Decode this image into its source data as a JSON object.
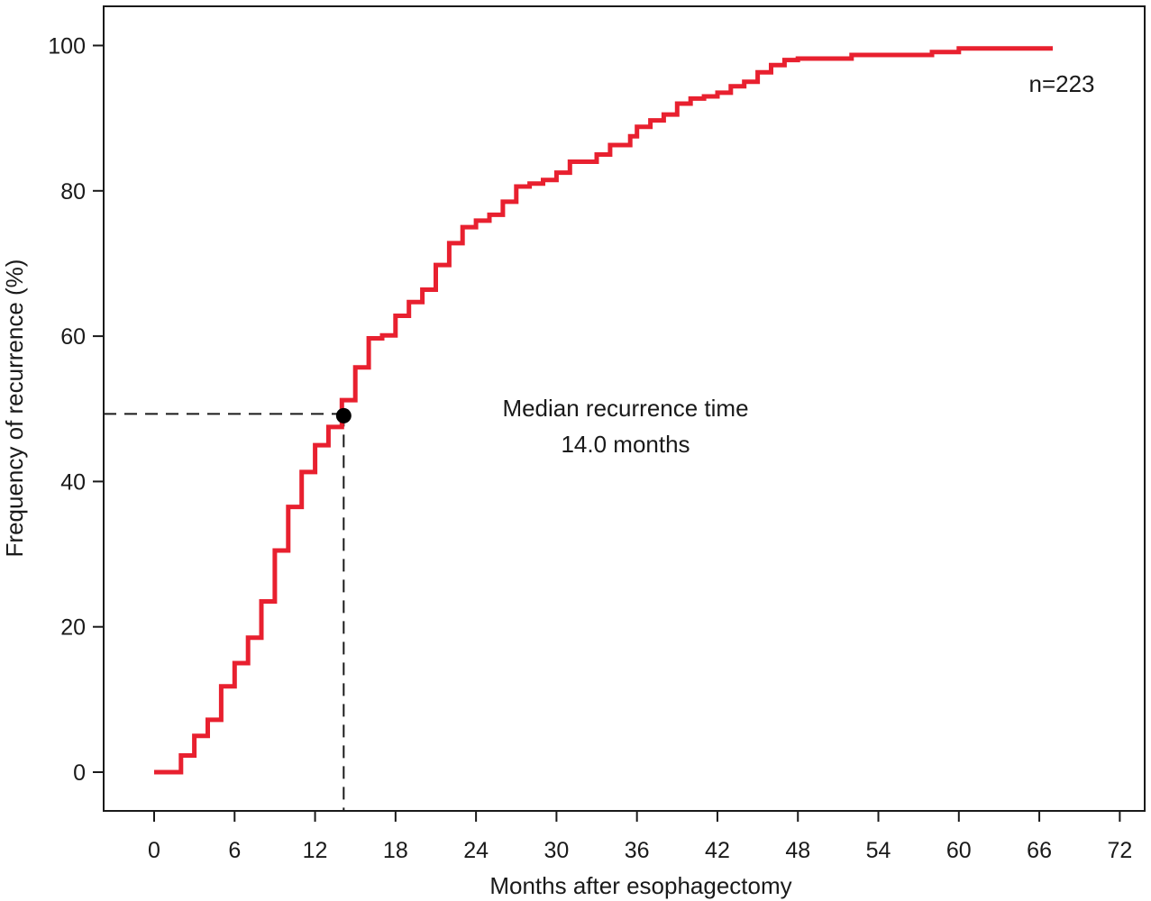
{
  "chart_data": {
    "type": "line",
    "step": true,
    "xlabel": "Months after esophagectomy",
    "ylabel": "Frequency of  recurrence (%)",
    "xlim": [
      0,
      72
    ],
    "ylim": [
      0,
      100
    ],
    "x_ticks": [
      0,
      6,
      12,
      18,
      24,
      30,
      36,
      42,
      48,
      54,
      60,
      66,
      72
    ],
    "y_ticks": [
      0,
      20,
      40,
      60,
      80,
      100
    ],
    "grid": false,
    "series": [
      {
        "color": "#e8202f",
        "points": [
          [
            0,
            0
          ],
          [
            2,
            0
          ],
          [
            2,
            2.3
          ],
          [
            3,
            2.3
          ],
          [
            3,
            5
          ],
          [
            4,
            5
          ],
          [
            4,
            7.2
          ],
          [
            5,
            7.2
          ],
          [
            5,
            11.8
          ],
          [
            6,
            11.8
          ],
          [
            6,
            15
          ],
          [
            7,
            15
          ],
          [
            7,
            18.5
          ],
          [
            8,
            18.5
          ],
          [
            8,
            23.5
          ],
          [
            9,
            23.5
          ],
          [
            9,
            30.5
          ],
          [
            10,
            30.5
          ],
          [
            10,
            36.5
          ],
          [
            11,
            36.5
          ],
          [
            11,
            41.3
          ],
          [
            12,
            41.3
          ],
          [
            12,
            45
          ],
          [
            13,
            45
          ],
          [
            13,
            47.5
          ],
          [
            14,
            47.5
          ],
          [
            14,
            51.2
          ],
          [
            15,
            51.2
          ],
          [
            15,
            55.7
          ],
          [
            16,
            55.7
          ],
          [
            16,
            59.7
          ],
          [
            17,
            59.7
          ],
          [
            17,
            60.1
          ],
          [
            18,
            60.1
          ],
          [
            18,
            62.8
          ],
          [
            19,
            62.8
          ],
          [
            19,
            64.7
          ],
          [
            20,
            64.7
          ],
          [
            20,
            66.4
          ],
          [
            21,
            66.4
          ],
          [
            21,
            69.8
          ],
          [
            22,
            69.8
          ],
          [
            22,
            72.8
          ],
          [
            23,
            72.8
          ],
          [
            23,
            75
          ],
          [
            24,
            75
          ],
          [
            24,
            75.9
          ],
          [
            25,
            75.9
          ],
          [
            25,
            76.7
          ],
          [
            26,
            76.7
          ],
          [
            26,
            78.5
          ],
          [
            27,
            78.5
          ],
          [
            27,
            80.6
          ],
          [
            28,
            80.6
          ],
          [
            28,
            81
          ],
          [
            29,
            81
          ],
          [
            29,
            81.5
          ],
          [
            30,
            81.5
          ],
          [
            30,
            82.5
          ],
          [
            31,
            82.5
          ],
          [
            31,
            84
          ],
          [
            33,
            84
          ],
          [
            33,
            85
          ],
          [
            34,
            85
          ],
          [
            34,
            86.3
          ],
          [
            35.5,
            86.3
          ],
          [
            35.5,
            87.5
          ],
          [
            36,
            87.5
          ],
          [
            36,
            88.8
          ],
          [
            37,
            88.8
          ],
          [
            37,
            89.7
          ],
          [
            38,
            89.7
          ],
          [
            38,
            90.5
          ],
          [
            39,
            90.5
          ],
          [
            39,
            92
          ],
          [
            40,
            92
          ],
          [
            40,
            92.7
          ],
          [
            41,
            92.7
          ],
          [
            41,
            93
          ],
          [
            42,
            93
          ],
          [
            42,
            93.5
          ],
          [
            43,
            93.5
          ],
          [
            43,
            94.4
          ],
          [
            44,
            94.4
          ],
          [
            44,
            95
          ],
          [
            45,
            95
          ],
          [
            45,
            96.3
          ],
          [
            46,
            96.3
          ],
          [
            46,
            97.3
          ],
          [
            47,
            97.3
          ],
          [
            47,
            98
          ],
          [
            48,
            98
          ],
          [
            48,
            98.2
          ],
          [
            52,
            98.2
          ],
          [
            52,
            98.7
          ],
          [
            58,
            98.7
          ],
          [
            58,
            99.1
          ],
          [
            60,
            99.1
          ],
          [
            60,
            99.6
          ],
          [
            67,
            99.6
          ]
        ]
      }
    ],
    "median": {
      "x": 14.0,
      "y": 49.3
    },
    "annotations": {
      "median_line1": "Median recurrence time",
      "median_line2": "14.0 months",
      "n_label": "n=223"
    }
  }
}
